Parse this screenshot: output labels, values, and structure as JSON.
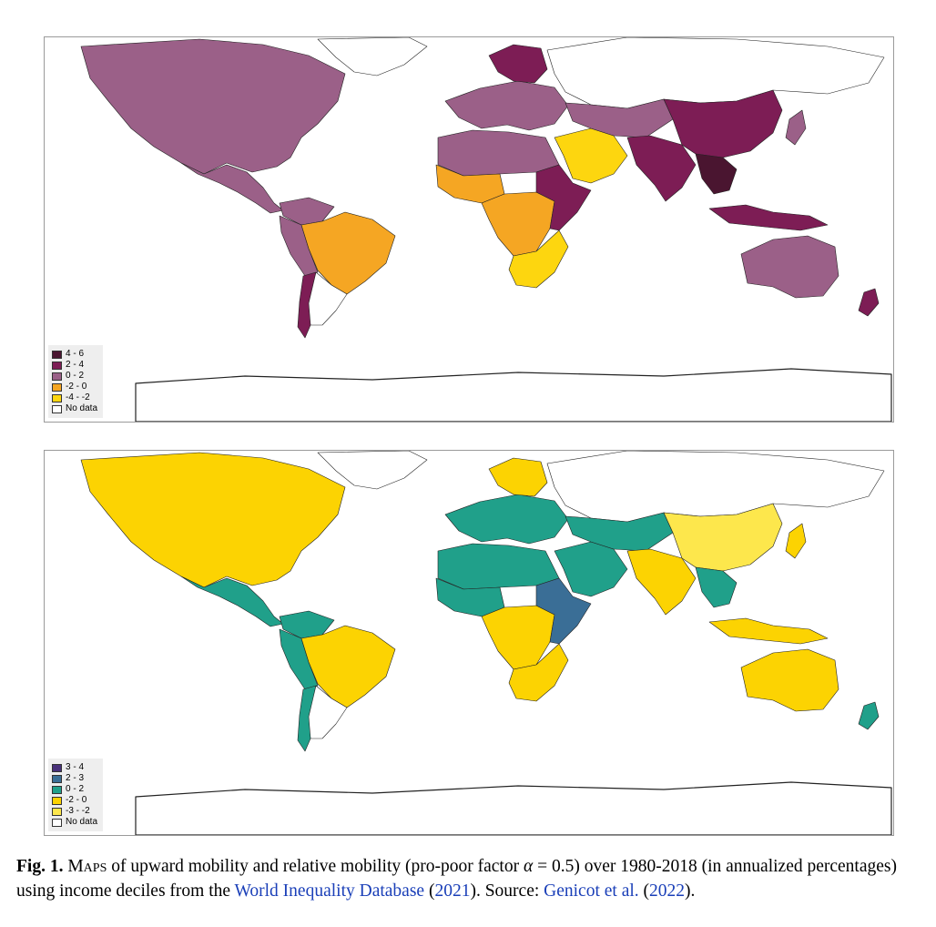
{
  "figure": {
    "caption": {
      "label": "Fig. 1.",
      "text_maps": "Maps",
      "text_1": " of upward mobility and relative mobility (pro-poor factor ",
      "alpha": "α",
      "eq": " = 0.5) over 1980-2018 (in annualized percentages) using income deciles from the ",
      "wid_link": "World Inequality Database",
      "wid_year_open": " (",
      "wid_year": "2021",
      "wid_year_close": "). Source: ",
      "source_link": "Genicot et al.",
      "source_year_open": " (",
      "source_year": "2022",
      "source_year_close": ")."
    }
  },
  "maps": [
    {
      "id": "upward-mobility",
      "legend": [
        {
          "label": "4 - 6",
          "color": "#4a1530"
        },
        {
          "label": "2 - 4",
          "color": "#7d1d55"
        },
        {
          "label": "0 - 2",
          "color": "#9b6088"
        },
        {
          "label": "-2 - 0",
          "color": "#f5a623"
        },
        {
          "label": "-4 - -2",
          "color": "#fdd60f"
        },
        {
          "label": "No data",
          "color": "#ffffff"
        }
      ],
      "regions": {
        "north_america": "#9b6088",
        "greenland": "#ffffff",
        "central_america": "#9b6088",
        "colombia_ven": "#9b6088",
        "andes": "#9b6088",
        "brazil": "#f5a623",
        "southern_cone": "#ffffff",
        "chile": "#7d1d55",
        "europe_west": "#9b6088",
        "scandinavia": "#7d1d55",
        "russia": "#ffffff",
        "north_africa": "#9b6088",
        "west_africa": "#f5a623",
        "central_africa": "#f5a623",
        "east_africa": "#7d1d55",
        "southern_africa": "#fdd60f",
        "middle_east": "#fdd60f",
        "central_asia": "#9b6088",
        "south_asia": "#7d1d55",
        "china": "#7d1d55",
        "southeast_asia": "#4a1530",
        "indonesia": "#7d1d55",
        "australia": "#9b6088",
        "new_zealand": "#7d1d55",
        "japan": "#9b6088",
        "antarctica": "#ffffff"
      }
    },
    {
      "id": "relative-mobility",
      "legend": [
        {
          "label": "3 - 4",
          "color": "#48307a"
        },
        {
          "label": "2 - 3",
          "color": "#3a6e96"
        },
        {
          "label": "0 - 2",
          "color": "#20a08a"
        },
        {
          "label": "-2 - 0",
          "color": "#fcd302"
        },
        {
          "label": "-3 - -2",
          "color": "#fde74c"
        },
        {
          "label": "No data",
          "color": "#ffffff"
        }
      ],
      "regions": {
        "north_america": "#fcd302",
        "greenland": "#ffffff",
        "central_america": "#20a08a",
        "colombia_ven": "#20a08a",
        "andes": "#20a08a",
        "brazil": "#fcd302",
        "southern_cone": "#ffffff",
        "chile": "#20a08a",
        "europe_west": "#20a08a",
        "scandinavia": "#fcd302",
        "russia": "#ffffff",
        "north_africa": "#20a08a",
        "west_africa": "#20a08a",
        "central_africa": "#fcd302",
        "east_africa": "#3a6e96",
        "southern_africa": "#fcd302",
        "middle_east": "#20a08a",
        "central_asia": "#20a08a",
        "south_asia": "#fcd302",
        "china": "#fde74c",
        "southeast_asia": "#20a08a",
        "indonesia": "#fcd302",
        "australia": "#fcd302",
        "new_zealand": "#20a08a",
        "japan": "#fcd302",
        "antarctica": "#ffffff"
      }
    }
  ]
}
